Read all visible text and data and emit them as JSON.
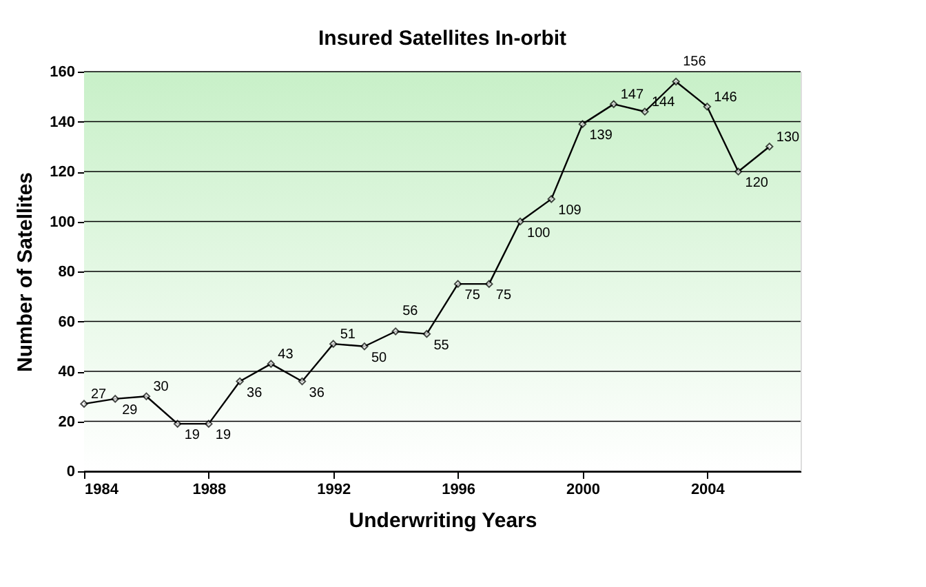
{
  "chart_data": {
    "type": "line",
    "title": "Insured Satellites In-orbit",
    "xlabel": "Underwriting Years",
    "ylabel": "Number of Satellites",
    "x": [
      1984,
      1985,
      1986,
      1987,
      1988,
      1989,
      1990,
      1991,
      1992,
      1993,
      1994,
      1995,
      1996,
      1997,
      1998,
      1999,
      2000,
      2001,
      2002,
      2003,
      2004,
      2005,
      2006
    ],
    "series": [
      {
        "color": "#000000",
        "values": [
          27,
          29,
          30,
          19,
          19,
          36,
          43,
          36,
          51,
          50,
          56,
          55,
          75,
          75,
          100,
          109,
          139,
          147,
          144,
          156,
          146,
          120,
          130
        ]
      }
    ],
    "xlim": [
      1984,
      2007
    ],
    "xticks": [
      1984,
      1988,
      1992,
      1996,
      2000,
      2004
    ],
    "ylim": [
      0,
      160
    ],
    "yticks": [
      0,
      20,
      40,
      60,
      80,
      100,
      120,
      140,
      160
    ],
    "grid": "y",
    "marker": "diamond",
    "line_style": "solid",
    "data_labels": true
  }
}
